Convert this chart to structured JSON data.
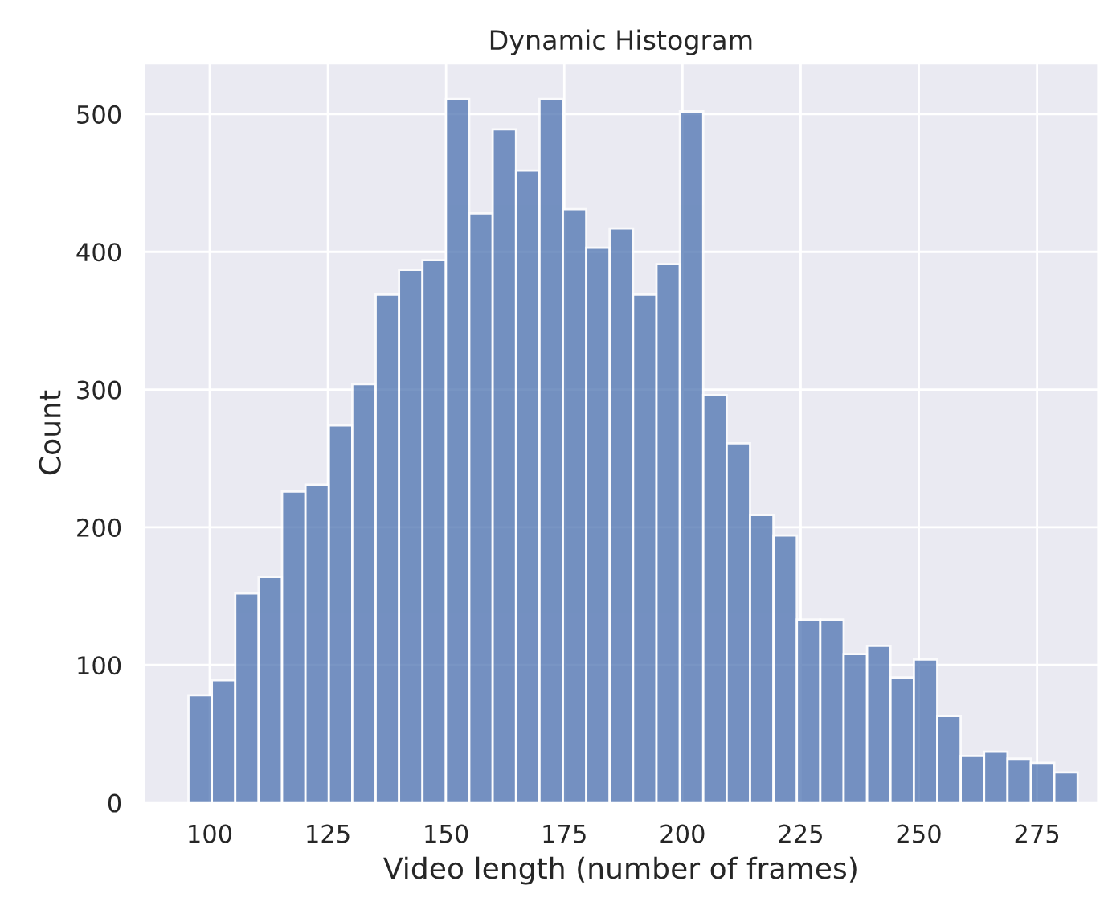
{
  "chart_data": {
    "type": "histogram",
    "title": "Dynamic Histogram",
    "xlabel": "Video length (number of frames)",
    "ylabel": "Count",
    "bins": [
      95.5,
      100.45,
      105.4,
      110.35,
      115.3,
      120.25,
      125.2,
      130.15,
      135.1,
      140.05,
      145.0,
      149.95,
      154.9,
      159.85,
      164.8,
      169.75,
      174.7,
      179.65,
      184.6,
      189.55,
      194.5,
      199.45,
      204.4,
      209.35,
      214.3,
      219.25,
      224.2,
      229.15,
      234.1,
      239.05,
      244.0,
      248.95,
      253.9,
      258.85,
      263.8,
      268.75,
      273.7,
      278.65,
      283.6
    ],
    "values": [
      78,
      89,
      152,
      164,
      226,
      231,
      274,
      304,
      369,
      387,
      394,
      511,
      428,
      489,
      459,
      511,
      431,
      403,
      417,
      369,
      391,
      502,
      296,
      261,
      209,
      194,
      133,
      133,
      108,
      114,
      91,
      104,
      63,
      34,
      37,
      32,
      29,
      22
    ],
    "color": "#4c72b0",
    "xlim": [
      86,
      288
    ],
    "ylim": [
      0,
      537
    ],
    "xticks": [
      100,
      125,
      150,
      175,
      200,
      225,
      250,
      275
    ],
    "yticks": [
      0,
      100,
      200,
      300,
      400,
      500
    ],
    "grid": true
  }
}
